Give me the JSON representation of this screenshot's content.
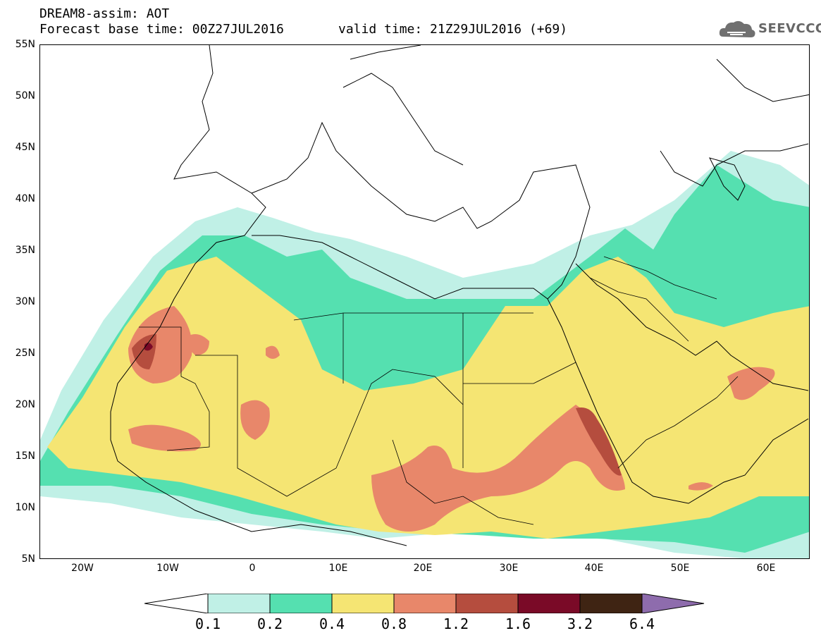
{
  "header": {
    "line1": "DREAM8-assim: AOT",
    "line2": "Forecast base time: 00Z27JUL2016",
    "line3": "valid time: 21Z29JUL2016 (+69)"
  },
  "logo": {
    "text": "SEEVCCC",
    "icon": "cloud-icon"
  },
  "axes": {
    "lat_labels": [
      "55N",
      "50N",
      "45N",
      "40N",
      "35N",
      "30N",
      "25N",
      "20N",
      "15N",
      "10N",
      "5N"
    ],
    "lon_labels": [
      "20W",
      "10W",
      "0",
      "10E",
      "20E",
      "30E",
      "40E",
      "50E",
      "60E"
    ]
  },
  "colorbar": {
    "ticks": [
      "0.1",
      "0.2",
      "0.4",
      "0.8",
      "1.2",
      "1.6",
      "3.2",
      "6.4"
    ],
    "colors": [
      "#ffffff",
      "#c0f0e6",
      "#55e0b0",
      "#f5e573",
      "#e8876a",
      "#b54d3e",
      "#7a0a27",
      "#3f2413",
      "#8e6cad"
    ]
  },
  "colors": {
    "c1": "#c0f0e6",
    "c2": "#55e0b0",
    "c3": "#f5e573",
    "c4": "#e8876a",
    "c5": "#b54d3e",
    "c6": "#7a0a27"
  }
}
